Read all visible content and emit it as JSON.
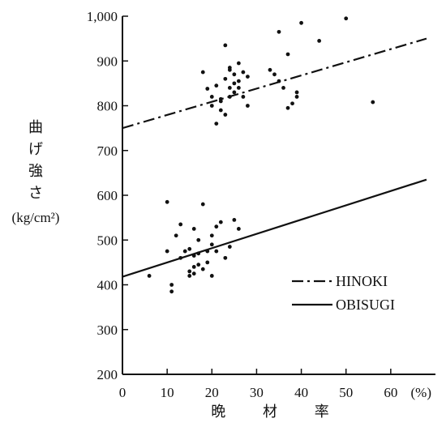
{
  "chart_data": {
    "type": "scatter",
    "title": "",
    "xlabel": "晩 材 率",
    "ylabel_lines": [
      "曲",
      "げ",
      "強",
      "さ",
      "(kg/cm²)"
    ],
    "xlim": [
      0,
      70
    ],
    "ylim": [
      200,
      1000
    ],
    "x_ticks": [
      0,
      10,
      20,
      30,
      40,
      50,
      60
    ],
    "x_tick_labels": [
      "0",
      "10",
      "20",
      "30",
      "40",
      "50",
      "60"
    ],
    "x_unit_label": "(%)",
    "y_ticks": [
      200,
      300,
      400,
      500,
      600,
      700,
      800,
      900,
      1000
    ],
    "y_tick_labels": [
      "200",
      "300",
      "400",
      "500",
      "600",
      "700",
      "800",
      "900",
      "1,000"
    ],
    "grid": false,
    "legend_position": "bottom-right",
    "series": [
      {
        "name": "HINOKI",
        "line_style": "dash-dot",
        "fit_line": [
          [
            0,
            750
          ],
          [
            68,
            950
          ]
        ],
        "points": [
          [
            18,
            875
          ],
          [
            19,
            838
          ],
          [
            20,
            820
          ],
          [
            20,
            800
          ],
          [
            21,
            845
          ],
          [
            21,
            760
          ],
          [
            22,
            790
          ],
          [
            22,
            815
          ],
          [
            22,
            810
          ],
          [
            23,
            935
          ],
          [
            23,
            860
          ],
          [
            23,
            780
          ],
          [
            24,
            885
          ],
          [
            24,
            840
          ],
          [
            24,
            820
          ],
          [
            24,
            880
          ],
          [
            25,
            870
          ],
          [
            25,
            850
          ],
          [
            25,
            830
          ],
          [
            26,
            895
          ],
          [
            26,
            855
          ],
          [
            26,
            840
          ],
          [
            27,
            875
          ],
          [
            27,
            820
          ],
          [
            28,
            865
          ],
          [
            28,
            800
          ],
          [
            33,
            880
          ],
          [
            34,
            870
          ],
          [
            35,
            965
          ],
          [
            35,
            855
          ],
          [
            36,
            840
          ],
          [
            37,
            915
          ],
          [
            37,
            795
          ],
          [
            38,
            805
          ],
          [
            39,
            830
          ],
          [
            39,
            820
          ],
          [
            40,
            985
          ],
          [
            44,
            945
          ],
          [
            50,
            995
          ],
          [
            56,
            808
          ]
        ]
      },
      {
        "name": "OBISUGI",
        "line_style": "solid",
        "fit_line": [
          [
            0,
            418
          ],
          [
            68,
            635
          ]
        ],
        "points": [
          [
            6,
            420
          ],
          [
            10,
            585
          ],
          [
            10,
            475
          ],
          [
            11,
            385
          ],
          [
            11,
            400
          ],
          [
            12,
            510
          ],
          [
            13,
            535
          ],
          [
            13,
            460
          ],
          [
            14,
            475
          ],
          [
            15,
            430
          ],
          [
            15,
            420
          ],
          [
            15,
            480
          ],
          [
            16,
            525
          ],
          [
            16,
            465
          ],
          [
            16,
            440
          ],
          [
            16,
            425
          ],
          [
            17,
            500
          ],
          [
            17,
            470
          ],
          [
            17,
            445
          ],
          [
            18,
            580
          ],
          [
            18,
            435
          ],
          [
            19,
            475
          ],
          [
            19,
            450
          ],
          [
            20,
            510
          ],
          [
            20,
            490
          ],
          [
            20,
            420
          ],
          [
            21,
            530
          ],
          [
            21,
            475
          ],
          [
            22,
            540
          ],
          [
            23,
            460
          ],
          [
            24,
            485
          ],
          [
            25,
            545
          ],
          [
            26,
            525
          ]
        ]
      }
    ]
  }
}
